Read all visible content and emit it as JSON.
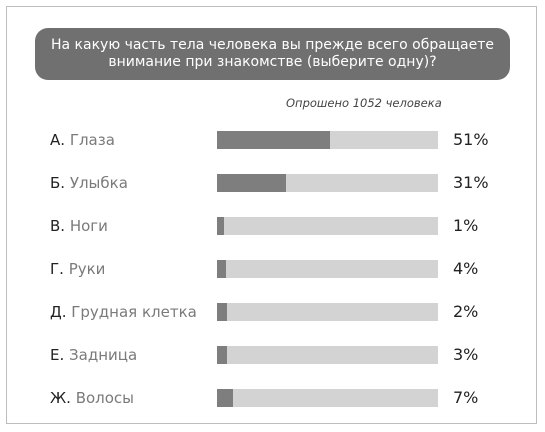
{
  "title": "На какую часть тела человека вы прежде всего обращаете внимание при знакомстве (выберите одну)?",
  "survey_note": "Опрошено 1052 человека",
  "colors": {
    "bar_fill": "#7e7e7e",
    "bar_track": "#d3d3d3",
    "title_bg": "#707070"
  },
  "chart_data": {
    "type": "bar",
    "orientation": "horizontal",
    "title": "На какую часть тела человека вы прежде всего обращаете внимание при знакомстве (выберите одну)?",
    "ylim": [
      0,
      100
    ],
    "categories": [
      "А. Глаза",
      "Б. Улыбка",
      "В. Ноги",
      "Г. Руки",
      "Д. Грудная клетка",
      "Е. Задница",
      "Ж. Волосы"
    ],
    "values": [
      51,
      31,
      1,
      4,
      2,
      3,
      7
    ],
    "value_labels": [
      "51%",
      "31%",
      "1%",
      "4%",
      "2%",
      "3%",
      "7%"
    ],
    "rows": [
      {
        "letter": "А.",
        "name": "Глаза",
        "value": 51,
        "label": "51%"
      },
      {
        "letter": "Б.",
        "name": "Улыбка",
        "value": 31,
        "label": "31%"
      },
      {
        "letter": "В.",
        "name": "Ноги",
        "value": 1,
        "label": "1%"
      },
      {
        "letter": "Г.",
        "name": "Руки",
        "value": 4,
        "label": "4%"
      },
      {
        "letter": "Д.",
        "name": "Грудная клетка",
        "value": 2,
        "label": "2%"
      },
      {
        "letter": "Е.",
        "name": "Задница",
        "value": 3,
        "label": "3%"
      },
      {
        "letter": "Ж.",
        "name": "Волосы",
        "value": 7,
        "label": "7%"
      }
    ]
  }
}
